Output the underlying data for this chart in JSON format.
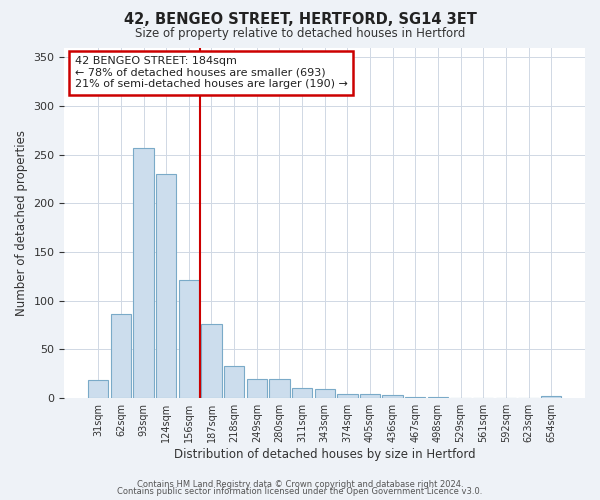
{
  "title": "42, BENGEO STREET, HERTFORD, SG14 3ET",
  "subtitle": "Size of property relative to detached houses in Hertford",
  "xlabel": "Distribution of detached houses by size in Hertford",
  "ylabel": "Number of detached properties",
  "bar_labels": [
    "31sqm",
    "62sqm",
    "93sqm",
    "124sqm",
    "156sqm",
    "187sqm",
    "218sqm",
    "249sqm",
    "280sqm",
    "311sqm",
    "343sqm",
    "374sqm",
    "405sqm",
    "436sqm",
    "467sqm",
    "498sqm",
    "529sqm",
    "561sqm",
    "592sqm",
    "623sqm",
    "654sqm"
  ],
  "bar_values": [
    19,
    86,
    257,
    230,
    121,
    76,
    33,
    20,
    20,
    10,
    9,
    4,
    4,
    3,
    1,
    1,
    0,
    0,
    0,
    0,
    2
  ],
  "bar_color": "#ccdded",
  "bar_edge_color": "#7aaac8",
  "marker_color": "#cc0000",
  "annotation_title": "42 BENGEO STREET: 184sqm",
  "annotation_line1": "← 78% of detached houses are smaller (693)",
  "annotation_line2": "21% of semi-detached houses are larger (190) →",
  "annotation_box_color": "#ffffff",
  "annotation_box_edge": "#cc0000",
  "ylim": [
    0,
    360
  ],
  "yticks": [
    0,
    50,
    100,
    150,
    200,
    250,
    300,
    350
  ],
  "footer1": "Contains HM Land Registry data © Crown copyright and database right 2024.",
  "footer2": "Contains public sector information licensed under the Open Government Licence v3.0.",
  "background_color": "#eef2f7",
  "plot_bg_color": "#ffffff",
  "grid_color": "#d0d8e4"
}
